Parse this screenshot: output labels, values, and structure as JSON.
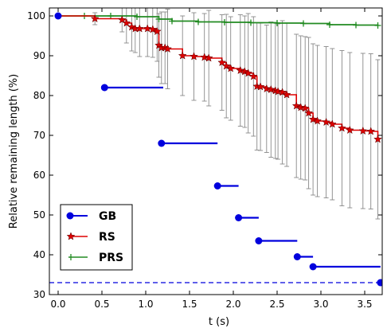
{
  "chart_data": {
    "type": "line",
    "xlabel": "t (s)",
    "ylabel": "Relative remaining length (%)",
    "xlim": [
      -0.1,
      3.7
    ],
    "ylim": [
      30,
      102
    ],
    "xticks": [
      0.0,
      0.5,
      1.0,
      1.5,
      2.0,
      2.5,
      3.0,
      3.5
    ],
    "xtick_labels": [
      "0.0",
      "0.5",
      "1.0",
      "1.5",
      "2.0",
      "2.5",
      "3.0",
      "3.5"
    ],
    "yticks": [
      30,
      40,
      50,
      60,
      70,
      80,
      90,
      100
    ],
    "ytick_labels": [
      "30",
      "40",
      "50",
      "60",
      "70",
      "80",
      "90",
      "100"
    ],
    "grid": false,
    "legend_position": "lower-left",
    "colors": {
      "GB": "#0000dd",
      "RS": "#dd0000",
      "PRS": "#228b22",
      "errorbar": "#888888"
    },
    "series": [
      {
        "name": "GB",
        "segments": [
          {
            "x1": 0.0,
            "x2": 0.0,
            "y": 100
          },
          {
            "x1": 0.53,
            "x2": 1.2,
            "y": 82
          },
          {
            "x1": 1.18,
            "x2": 1.82,
            "y": 68
          },
          {
            "x1": 1.82,
            "x2": 2.06,
            "y": 57.3
          },
          {
            "x1": 2.06,
            "x2": 2.29,
            "y": 49.3
          },
          {
            "x1": 2.29,
            "x2": 2.73,
            "y": 43.5
          },
          {
            "x1": 2.73,
            "x2": 2.91,
            "y": 39.5
          },
          {
            "x1": 2.91,
            "x2": 3.68,
            "y": 37.0
          }
        ],
        "dashed_line_y": 33.0,
        "end_point": {
          "x": 3.68,
          "y": 33.0
        }
      },
      {
        "name": "RS",
        "x": [
          0.0,
          0.42,
          0.73,
          0.78,
          0.84,
          0.88,
          0.93,
          1.02,
          1.08,
          1.13,
          1.15,
          1.18,
          1.22,
          1.25,
          1.42,
          1.55,
          1.67,
          1.72,
          1.87,
          1.92,
          1.97,
          2.08,
          2.13,
          2.17,
          2.23,
          2.27,
          2.31,
          2.38,
          2.43,
          2.48,
          2.51,
          2.56,
          2.61,
          2.72,
          2.77,
          2.82,
          2.86,
          2.91,
          2.96,
          3.06,
          3.13,
          3.24,
          3.33,
          3.48,
          3.57,
          3.65
        ],
        "y": [
          100,
          99.3,
          99.0,
          98.2,
          97.2,
          96.8,
          96.8,
          96.8,
          96.6,
          96.1,
          92.6,
          92.0,
          92.0,
          91.7,
          90.0,
          89.8,
          89.6,
          89.4,
          88.3,
          87.4,
          86.8,
          86.3,
          86.0,
          85.6,
          84.8,
          82.3,
          82.2,
          81.7,
          81.5,
          81.2,
          81.0,
          80.8,
          80.2,
          77.4,
          77.0,
          76.8,
          75.6,
          74.0,
          73.6,
          73.3,
          72.8,
          71.8,
          71.3,
          71.1,
          71.0,
          69.0
        ],
        "err": [
          0.5,
          1.5,
          3,
          5,
          6,
          6,
          7,
          7,
          7,
          7.5,
          8,
          9,
          9,
          10,
          10,
          11,
          11,
          12,
          12,
          13,
          13,
          14,
          14,
          15,
          15,
          16,
          16,
          16,
          17,
          17,
          17,
          18,
          18,
          18,
          18,
          18,
          19,
          19,
          19,
          19,
          19,
          19.5,
          19.5,
          19.5,
          19.5,
          20
        ]
      },
      {
        "name": "PRS",
        "x": [
          0.0,
          0.3,
          0.6,
          0.9,
          1.15,
          1.3,
          1.6,
          1.9,
          2.2,
          2.5,
          2.8,
          3.1,
          3.4,
          3.65
        ],
        "y": [
          100,
          100,
          100,
          99.8,
          99.2,
          98.7,
          98.5,
          98.4,
          98.3,
          98.2,
          98.1,
          97.8,
          97.7,
          97.6
        ]
      }
    ]
  }
}
